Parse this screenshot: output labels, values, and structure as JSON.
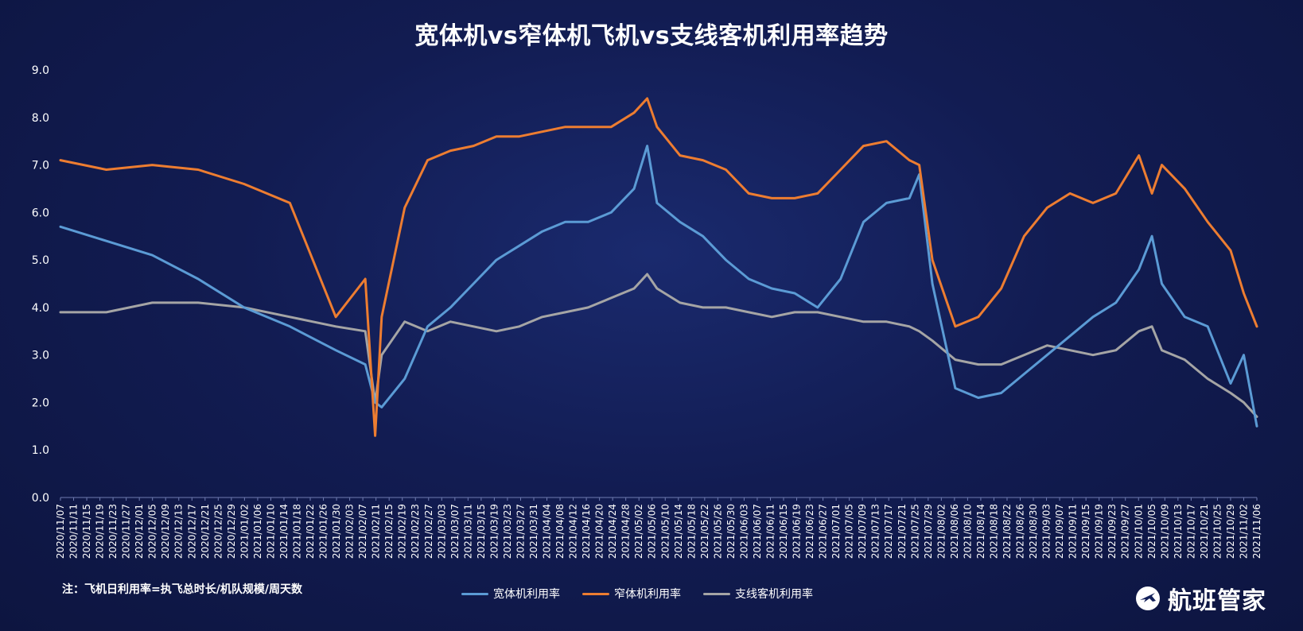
{
  "colors": {
    "wide": "#5b9bd5",
    "narrow": "#ed7d31",
    "regional": "#a5a5a5",
    "axis_text": "#ffffff"
  },
  "note": "注：飞机日利用率=执飞总时长/机队规模/周天数",
  "brand": {
    "name": "航班管家",
    "icon": "airplane-circle-logo"
  },
  "chart_data": {
    "type": "line",
    "title": "宽体机vs窄体机飞机vs支线客机利用率趋势",
    "xlabel": "",
    "ylabel": "",
    "ylim": [
      0,
      9
    ],
    "yticks": [
      "0.0",
      "1.0",
      "2.0",
      "3.0",
      "4.0",
      "5.0",
      "6.0",
      "7.0",
      "8.0",
      "9.0"
    ],
    "x_start": "2020-11-07",
    "x_end": "2021-11-07",
    "x_tick_labels": [
      "2020/11/07",
      "2020/11/11",
      "2020/11/15",
      "2020/11/19",
      "2020/11/23",
      "2020/11/27",
      "2020/12/01",
      "2020/12/05",
      "2020/12/09",
      "2020/12/13",
      "2020/12/17",
      "2020/12/21",
      "2020/12/25",
      "2020/12/29",
      "2021/01/02",
      "2021/01/06",
      "2021/01/10",
      "2021/01/14",
      "2021/01/18",
      "2021/01/22",
      "2021/01/26",
      "2021/01/30",
      "2021/02/03",
      "2021/02/07",
      "2021/02/11",
      "2021/02/15",
      "2021/02/19",
      "2021/02/23",
      "2021/02/27",
      "2021/03/03",
      "2021/03/07",
      "2021/03/11",
      "2021/03/15",
      "2021/03/19",
      "2021/03/23",
      "2021/03/27",
      "2021/03/31",
      "2021/04/04",
      "2021/04/08",
      "2021/04/12",
      "2021/04/16",
      "2021/04/20",
      "2021/04/24",
      "2021/04/28",
      "2021/05/02",
      "2021/05/06",
      "2021/05/10",
      "2021/05/14",
      "2021/05/18",
      "2021/05/22",
      "2021/05/26",
      "2021/05/30",
      "2021/06/03",
      "2021/06/07",
      "2021/06/11",
      "2021/06/15",
      "2021/06/19",
      "2021/06/23",
      "2021/06/27",
      "2021/07/01",
      "2021/07/05",
      "2021/07/09",
      "2021/07/13",
      "2021/07/17",
      "2021/07/21",
      "2021/07/25",
      "2021/07/29",
      "2021/08/02",
      "2021/08/06",
      "2021/08/10",
      "2021/08/14",
      "2021/08/18",
      "2021/08/22",
      "2021/08/26",
      "2021/08/30",
      "2021/09/03",
      "2021/09/07",
      "2021/09/11",
      "2021/09/15",
      "2021/09/19",
      "2021/09/23",
      "2021/09/27",
      "2021/10/01",
      "2021/10/05",
      "2021/10/09",
      "2021/10/13",
      "2021/10/17",
      "2021/10/21",
      "2021/10/25",
      "2021/10/29",
      "2021/11/02",
      "2021/11/06"
    ],
    "series_x_dates": [
      "2020-11-07",
      "2020-11-21",
      "2020-12-05",
      "2020-12-19",
      "2021-01-02",
      "2021-01-16",
      "2021-01-30",
      "2021-02-08",
      "2021-02-11",
      "2021-02-13",
      "2021-02-20",
      "2021-02-27",
      "2021-03-06",
      "2021-03-13",
      "2021-03-20",
      "2021-03-27",
      "2021-04-03",
      "2021-04-10",
      "2021-04-17",
      "2021-04-24",
      "2021-05-01",
      "2021-05-05",
      "2021-05-08",
      "2021-05-15",
      "2021-05-22",
      "2021-05-29",
      "2021-06-05",
      "2021-06-12",
      "2021-06-19",
      "2021-06-26",
      "2021-07-03",
      "2021-07-10",
      "2021-07-17",
      "2021-07-24",
      "2021-07-27",
      "2021-07-31",
      "2021-08-07",
      "2021-08-14",
      "2021-08-21",
      "2021-08-28",
      "2021-09-04",
      "2021-09-11",
      "2021-09-18",
      "2021-09-25",
      "2021-10-02",
      "2021-10-06",
      "2021-10-09",
      "2021-10-16",
      "2021-10-23",
      "2021-10-30",
      "2021-11-03",
      "2021-11-07"
    ],
    "series": [
      {
        "name": "宽体机利用率",
        "color": "#5b9bd5",
        "values": [
          5.7,
          5.4,
          5.1,
          4.6,
          4.0,
          3.6,
          3.1,
          2.8,
          2.0,
          1.9,
          2.5,
          3.6,
          4.0,
          4.5,
          5.0,
          5.3,
          5.6,
          5.8,
          5.8,
          6.0,
          6.5,
          7.4,
          6.2,
          5.8,
          5.5,
          5.0,
          4.6,
          4.4,
          4.3,
          4.0,
          4.6,
          5.8,
          6.2,
          6.3,
          6.8,
          4.5,
          2.3,
          2.1,
          2.2,
          2.6,
          3.0,
          3.4,
          3.8,
          4.1,
          4.8,
          5.5,
          4.5,
          3.8,
          3.6,
          2.4,
          3.0,
          1.5
        ]
      },
      {
        "name": "窄体机利用率",
        "color": "#ed7d31",
        "values": [
          7.1,
          6.9,
          7.0,
          6.9,
          6.6,
          6.2,
          3.8,
          4.6,
          1.3,
          3.8,
          6.1,
          7.1,
          7.3,
          7.4,
          7.6,
          7.6,
          7.7,
          7.8,
          7.8,
          7.8,
          8.1,
          8.4,
          7.8,
          7.2,
          7.1,
          6.9,
          6.4,
          6.3,
          6.3,
          6.4,
          6.9,
          7.4,
          7.5,
          7.1,
          7.0,
          5.0,
          3.6,
          3.8,
          4.4,
          5.5,
          6.1,
          6.4,
          6.2,
          6.4,
          7.2,
          6.4,
          7.0,
          6.5,
          5.8,
          5.2,
          4.3,
          3.6
        ]
      },
      {
        "name": "支线客机利用率",
        "color": "#a5a5a5",
        "values": [
          3.9,
          3.9,
          4.1,
          4.1,
          4.0,
          3.8,
          3.6,
          3.5,
          2.0,
          3.0,
          3.7,
          3.5,
          3.7,
          3.6,
          3.5,
          3.6,
          3.8,
          3.9,
          4.0,
          4.2,
          4.4,
          4.7,
          4.4,
          4.1,
          4.0,
          4.0,
          3.9,
          3.8,
          3.9,
          3.9,
          3.8,
          3.7,
          3.7,
          3.6,
          3.5,
          3.3,
          2.9,
          2.8,
          2.8,
          3.0,
          3.2,
          3.1,
          3.0,
          3.1,
          3.5,
          3.6,
          3.1,
          2.9,
          2.5,
          2.2,
          2.0,
          1.7
        ]
      }
    ]
  }
}
